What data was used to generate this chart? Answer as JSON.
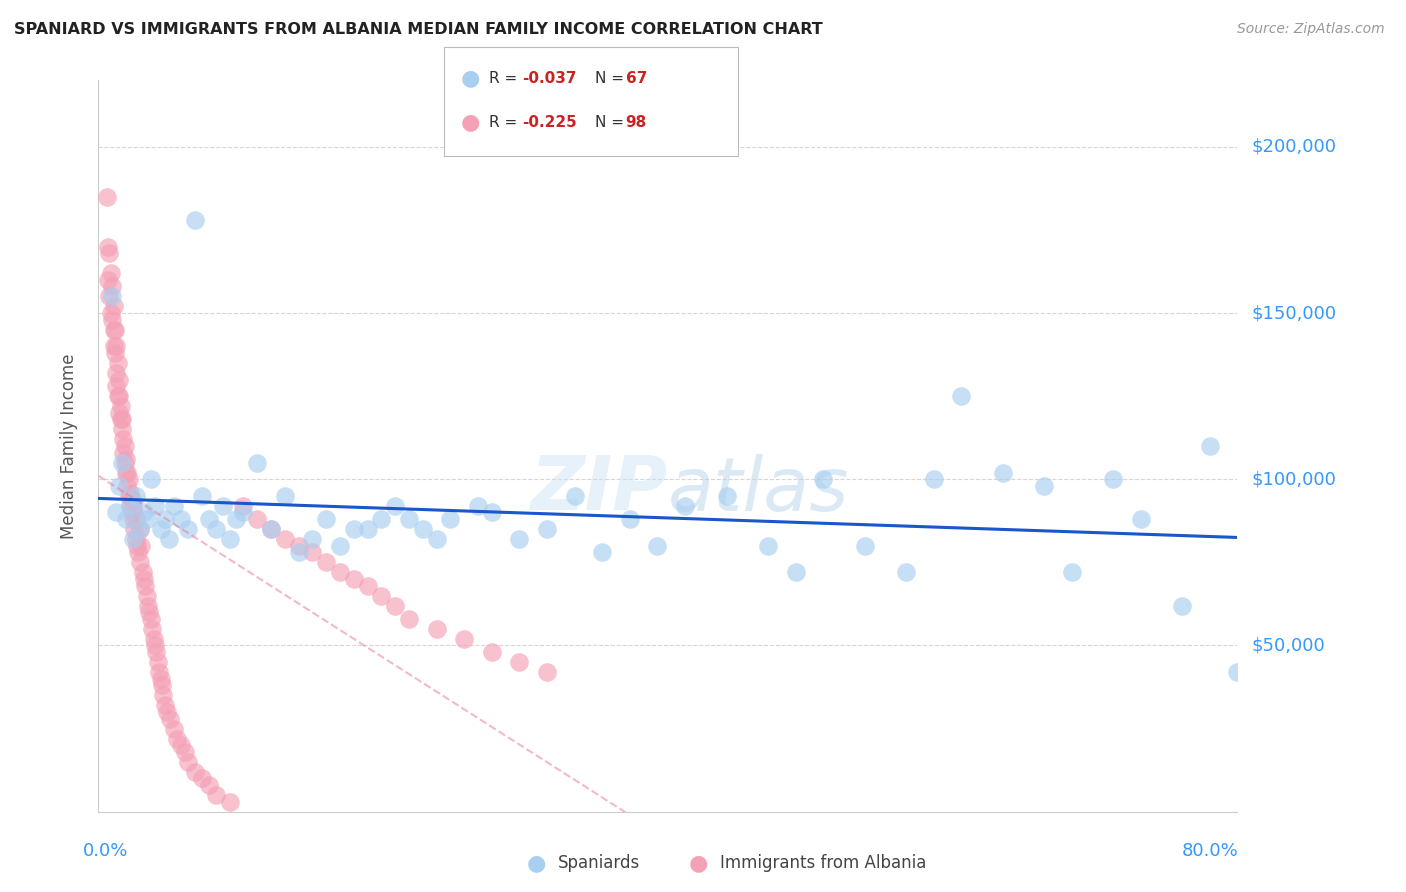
{
  "title": "SPANIARD VS IMMIGRANTS FROM ALBANIA MEDIAN FAMILY INCOME CORRELATION CHART",
  "source": "Source: ZipAtlas.com",
  "ylabel": "Median Family Income",
  "ytick_labels": [
    "$50,000",
    "$100,000",
    "$150,000",
    "$200,000"
  ],
  "ytick_values": [
    50000,
    100000,
    150000,
    200000
  ],
  "ylim": [
    0,
    220000
  ],
  "xlim": [
    -0.005,
    0.82
  ],
  "legend_blue_r": "-0.037",
  "legend_blue_n": "67",
  "legend_pink_r": "-0.225",
  "legend_pink_n": "98",
  "blue_color": "#a8cef0",
  "pink_color": "#f4a0b5",
  "blue_line_color": "#1a56cc",
  "pink_line_color": "#e88098",
  "title_color": "#222222",
  "tick_label_color": "#3399ff",
  "source_color": "#999999",
  "background_color": "#ffffff",
  "spaniards_x": [
    0.005,
    0.008,
    0.01,
    0.012,
    0.015,
    0.018,
    0.02,
    0.022,
    0.025,
    0.028,
    0.03,
    0.033,
    0.036,
    0.04,
    0.043,
    0.046,
    0.05,
    0.055,
    0.06,
    0.065,
    0.07,
    0.075,
    0.08,
    0.085,
    0.09,
    0.095,
    0.1,
    0.11,
    0.12,
    0.13,
    0.14,
    0.15,
    0.16,
    0.17,
    0.18,
    0.19,
    0.2,
    0.21,
    0.22,
    0.23,
    0.24,
    0.25,
    0.27,
    0.28,
    0.3,
    0.32,
    0.34,
    0.36,
    0.38,
    0.4,
    0.42,
    0.45,
    0.48,
    0.5,
    0.52,
    0.55,
    0.58,
    0.6,
    0.62,
    0.65,
    0.68,
    0.7,
    0.73,
    0.75,
    0.78,
    0.8,
    0.82
  ],
  "spaniards_y": [
    155000,
    90000,
    98000,
    105000,
    88000,
    92000,
    82000,
    95000,
    85000,
    90000,
    88000,
    100000,
    92000,
    85000,
    88000,
    82000,
    92000,
    88000,
    85000,
    178000,
    95000,
    88000,
    85000,
    92000,
    82000,
    88000,
    90000,
    105000,
    85000,
    95000,
    78000,
    82000,
    88000,
    80000,
    85000,
    85000,
    88000,
    92000,
    88000,
    85000,
    82000,
    88000,
    92000,
    90000,
    82000,
    85000,
    95000,
    78000,
    88000,
    80000,
    92000,
    95000,
    80000,
    72000,
    100000,
    80000,
    72000,
    100000,
    125000,
    102000,
    98000,
    72000,
    100000,
    88000,
    62000,
    110000,
    42000
  ],
  "albania_x": [
    0.001,
    0.002,
    0.002,
    0.003,
    0.003,
    0.004,
    0.004,
    0.005,
    0.005,
    0.006,
    0.006,
    0.006,
    0.007,
    0.007,
    0.008,
    0.008,
    0.008,
    0.009,
    0.009,
    0.01,
    0.01,
    0.01,
    0.011,
    0.011,
    0.012,
    0.012,
    0.013,
    0.013,
    0.014,
    0.014,
    0.015,
    0.015,
    0.016,
    0.016,
    0.017,
    0.017,
    0.018,
    0.018,
    0.019,
    0.019,
    0.02,
    0.02,
    0.021,
    0.021,
    0.022,
    0.022,
    0.023,
    0.024,
    0.025,
    0.025,
    0.026,
    0.027,
    0.028,
    0.029,
    0.03,
    0.031,
    0.032,
    0.033,
    0.034,
    0.035,
    0.036,
    0.037,
    0.038,
    0.039,
    0.04,
    0.041,
    0.042,
    0.043,
    0.045,
    0.047,
    0.05,
    0.052,
    0.055,
    0.058,
    0.06,
    0.065,
    0.07,
    0.075,
    0.08,
    0.09,
    0.1,
    0.11,
    0.12,
    0.13,
    0.14,
    0.15,
    0.16,
    0.17,
    0.18,
    0.19,
    0.2,
    0.21,
    0.22,
    0.24,
    0.26,
    0.28,
    0.3,
    0.32
  ],
  "albania_y": [
    185000,
    170000,
    160000,
    168000,
    155000,
    162000,
    150000,
    148000,
    158000,
    145000,
    140000,
    152000,
    138000,
    145000,
    132000,
    140000,
    128000,
    135000,
    125000,
    130000,
    120000,
    125000,
    118000,
    122000,
    115000,
    118000,
    112000,
    108000,
    105000,
    110000,
    102000,
    106000,
    98000,
    102000,
    95000,
    100000,
    92000,
    96000,
    90000,
    94000,
    88000,
    92000,
    85000,
    90000,
    82000,
    88000,
    80000,
    78000,
    85000,
    75000,
    80000,
    72000,
    70000,
    68000,
    65000,
    62000,
    60000,
    58000,
    55000,
    52000,
    50000,
    48000,
    45000,
    42000,
    40000,
    38000,
    35000,
    32000,
    30000,
    28000,
    25000,
    22000,
    20000,
    18000,
    15000,
    12000,
    10000,
    8000,
    5000,
    3000,
    92000,
    88000,
    85000,
    82000,
    80000,
    78000,
    75000,
    72000,
    70000,
    68000,
    65000,
    62000,
    58000,
    55000,
    52000,
    48000,
    45000,
    42000
  ]
}
